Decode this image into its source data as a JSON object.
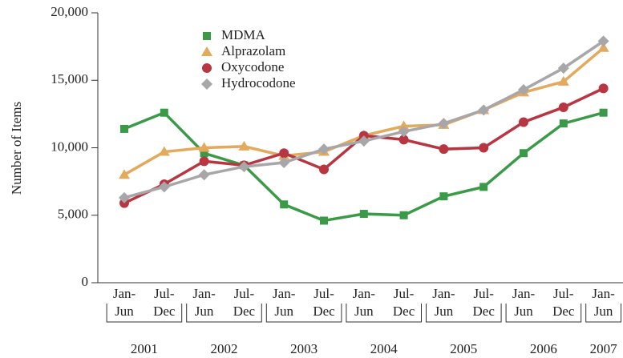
{
  "chart_data": {
    "type": "line",
    "y_axis_label": "Number of Items",
    "categories": [
      [
        "Jan-",
        "Jun"
      ],
      [
        "Jul-",
        "Dec"
      ],
      [
        "Jan-",
        "Jun"
      ],
      [
        "Jul-",
        "Dec"
      ],
      [
        "Jan-",
        "Jun"
      ],
      [
        "Jul-",
        "Dec"
      ],
      [
        "Jan-",
        "Jun"
      ],
      [
        "Jul-",
        "Dec"
      ],
      [
        "Jan-",
        "Jun"
      ],
      [
        "Jul-",
        "Dec"
      ],
      [
        "Jan-",
        "Jun"
      ],
      [
        "Jul-",
        "Dec"
      ],
      [
        "Jan-",
        "Jun"
      ]
    ],
    "year_groups": [
      "2001",
      "2002",
      "2003",
      "2004",
      "2005",
      "2006",
      "2007"
    ],
    "ylim": [
      0,
      20000
    ],
    "yticks": [
      0,
      {
        "value": 5000,
        "label": "5,000"
      },
      {
        "value": 10000,
        "label": "10,000"
      },
      {
        "value": 15000,
        "label": "15,000"
      },
      {
        "value": 20000,
        "label": "20,000"
      }
    ],
    "series": [
      {
        "name": "MDMA",
        "color": "#3a9a48",
        "marker": "square",
        "values": [
          11400,
          12600,
          9600,
          8700,
          5800,
          4600,
          5100,
          5000,
          6400,
          7100,
          9600,
          11800,
          12600
        ]
      },
      {
        "name": "Alprazolam",
        "color": "#e3a95c",
        "marker": "triangle",
        "values": [
          8000,
          9700,
          10000,
          10100,
          9400,
          9700,
          10900,
          11600,
          11700,
          12800,
          14100,
          14900,
          17400
        ]
      },
      {
        "name": "Oxycodone",
        "color": "#b83642",
        "marker": "circle",
        "values": [
          5900,
          7300,
          9000,
          8700,
          9600,
          8400,
          10900,
          10600,
          9900,
          10000,
          11900,
          13000,
          14400
        ]
      },
      {
        "name": "Hydrocodone",
        "color": "#a7a7aa",
        "marker": "diamond",
        "values": [
          6300,
          7100,
          8000,
          8600,
          8900,
          9900,
          10500,
          11200,
          11800,
          12800,
          14300,
          15900,
          17900
        ]
      }
    ]
  }
}
